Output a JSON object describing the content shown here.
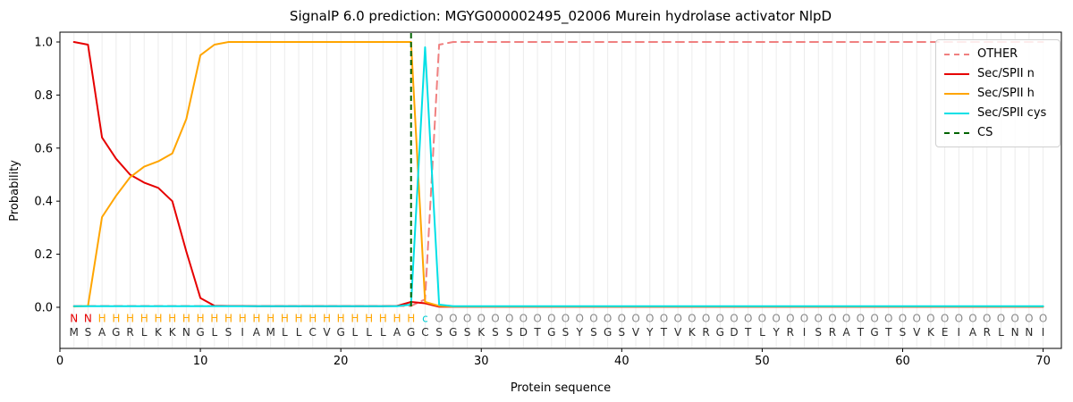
{
  "figure": {
    "title": "SignalP 6.0 prediction: MGYG000002495_02006 Murein hydrolase activator NlpD",
    "xlabel": "Protein sequence",
    "ylabel": "Probability"
  },
  "legend": {
    "position": "upper right",
    "items": [
      {
        "label": "OTHER",
        "color": "#f08080",
        "dash": true
      },
      {
        "label": "Sec/SPII n",
        "color": "#e60000",
        "dash": false
      },
      {
        "label": "Sec/SPII h",
        "color": "#ffa500",
        "dash": false
      },
      {
        "label": "Sec/SPII cys",
        "color": "#00e0e6",
        "dash": false
      },
      {
        "label": "CS",
        "color": "#006400",
        "dash": true
      }
    ]
  },
  "chart_data": {
    "type": "line",
    "title": "SignalP 6.0 prediction: MGYG000002495_02006 Murein hydrolase activator NlpD",
    "xlabel": "Protein sequence",
    "ylabel": "Probability",
    "xlim": [
      0,
      71.3
    ],
    "ylim": [
      -0.155,
      1.037
    ],
    "x_ticks": [
      0,
      10,
      20,
      30,
      40,
      50,
      60,
      70
    ],
    "y_ticks": [
      0.0,
      0.2,
      0.4,
      0.6,
      0.8,
      1.0
    ],
    "grid": "vertical gridline at every residue position 1-70",
    "legend_position": "upper right",
    "grid_color": "#ececec",
    "x": [
      1,
      2,
      3,
      4,
      5,
      6,
      7,
      8,
      9,
      10,
      11,
      12,
      13,
      14,
      15,
      16,
      17,
      18,
      19,
      20,
      21,
      22,
      23,
      24,
      25,
      26,
      27,
      28,
      29,
      30,
      31,
      32,
      33,
      34,
      35,
      36,
      37,
      38,
      39,
      40,
      41,
      42,
      43,
      44,
      45,
      46,
      47,
      48,
      49,
      50,
      51,
      52,
      53,
      54,
      55,
      56,
      57,
      58,
      59,
      60,
      61,
      62,
      63,
      64,
      65,
      66,
      67,
      68,
      69,
      70
    ],
    "series": [
      {
        "name": "OTHER",
        "color": "#f08080",
        "dash": true,
        "values": [
          0.005,
          0.005,
          0.005,
          0.005,
          0.005,
          0.005,
          0.005,
          0.005,
          0.005,
          0.005,
          0.005,
          0.005,
          0.005,
          0.005,
          0.005,
          0.005,
          0.005,
          0.005,
          0.005,
          0.005,
          0.005,
          0.005,
          0.005,
          0.005,
          0.005,
          0.03,
          0.99,
          1.0,
          1.0,
          1.0,
          1.0,
          1.0,
          1.0,
          1.0,
          1.0,
          1.0,
          1.0,
          1.0,
          1.0,
          1.0,
          1.0,
          1.0,
          1.0,
          1.0,
          1.0,
          1.0,
          1.0,
          1.0,
          1.0,
          1.0,
          1.0,
          1.0,
          1.0,
          1.0,
          1.0,
          1.0,
          1.0,
          1.0,
          1.0,
          1.0,
          1.0,
          1.0,
          1.0,
          1.0,
          1.0,
          1.0,
          1.0,
          1.0,
          1.0,
          1.0
        ]
      },
      {
        "name": "Sec/SPII n",
        "color": "#e60000",
        "dash": false,
        "values": [
          1.0,
          0.99,
          0.64,
          0.56,
          0.5,
          0.47,
          0.45,
          0.4,
          0.21,
          0.035,
          0.006,
          0.005,
          0.005,
          0.004,
          0.004,
          0.004,
          0.004,
          0.004,
          0.004,
          0.004,
          0.004,
          0.004,
          0.004,
          0.005,
          0.02,
          0.015,
          0.002,
          0.002,
          0.002,
          0.002,
          0.002,
          0.002,
          0.002,
          0.002,
          0.002,
          0.002,
          0.002,
          0.002,
          0.002,
          0.002,
          0.002,
          0.002,
          0.002,
          0.002,
          0.002,
          0.002,
          0.002,
          0.002,
          0.002,
          0.002,
          0.002,
          0.002,
          0.002,
          0.002,
          0.002,
          0.002,
          0.002,
          0.002,
          0.002,
          0.002,
          0.002,
          0.002,
          0.002,
          0.002,
          0.002,
          0.002,
          0.002,
          0.002,
          0.002,
          0.002
        ]
      },
      {
        "name": "Sec/SPII h",
        "color": "#ffa500",
        "dash": false,
        "values": [
          0.003,
          0.005,
          0.34,
          0.42,
          0.49,
          0.53,
          0.55,
          0.58,
          0.71,
          0.95,
          0.99,
          1.0,
          1.0,
          1.0,
          1.0,
          1.0,
          1.0,
          1.0,
          1.0,
          1.0,
          1.0,
          1.0,
          1.0,
          1.0,
          1.0,
          0.02,
          0.005,
          0.003,
          0.003,
          0.003,
          0.003,
          0.003,
          0.003,
          0.003,
          0.003,
          0.003,
          0.003,
          0.003,
          0.003,
          0.003,
          0.003,
          0.003,
          0.003,
          0.003,
          0.003,
          0.003,
          0.003,
          0.003,
          0.003,
          0.003,
          0.003,
          0.003,
          0.003,
          0.003,
          0.003,
          0.003,
          0.003,
          0.003,
          0.003,
          0.003,
          0.003,
          0.003,
          0.003,
          0.003,
          0.003,
          0.003,
          0.003,
          0.003,
          0.003,
          0.003
        ]
      },
      {
        "name": "Sec/SPII cys",
        "color": "#00e0e6",
        "dash": false,
        "values": [
          0.004,
          0.004,
          0.004,
          0.004,
          0.004,
          0.004,
          0.004,
          0.004,
          0.004,
          0.004,
          0.004,
          0.004,
          0.004,
          0.004,
          0.004,
          0.004,
          0.004,
          0.004,
          0.004,
          0.004,
          0.004,
          0.004,
          0.004,
          0.004,
          0.01,
          0.98,
          0.01,
          0.004,
          0.004,
          0.004,
          0.004,
          0.004,
          0.004,
          0.004,
          0.004,
          0.004,
          0.004,
          0.004,
          0.004,
          0.004,
          0.004,
          0.004,
          0.004,
          0.004,
          0.004,
          0.004,
          0.004,
          0.004,
          0.004,
          0.004,
          0.004,
          0.004,
          0.004,
          0.004,
          0.004,
          0.004,
          0.004,
          0.004,
          0.004,
          0.004,
          0.004,
          0.004,
          0.004,
          0.004,
          0.004,
          0.004,
          0.004,
          0.004,
          0.004,
          0.004
        ]
      }
    ],
    "cs_marker": {
      "label": "CS",
      "color": "#006400",
      "position": 25,
      "dash": true
    },
    "sequence": "MSAGRLKKNGLSIAMLLCVGLLLAGCSGSKSSDTGSYSGSVYTVKRGDTLYRISRATGTSVKEIARLNNI",
    "annotation": "NNHHHHHHHHHHHHHHHHHHHHHHHcOOOOOOOOOOOOOOOOOOOOOOOOOOOOOOOOOOOOOOOOOOOO",
    "annotation_colors": {
      "N": "#e60000",
      "H": "#ffa500",
      "c": "#00cdd4",
      "O": "#8a8a8a"
    },
    "sequence_color": "#2a2a2a"
  }
}
